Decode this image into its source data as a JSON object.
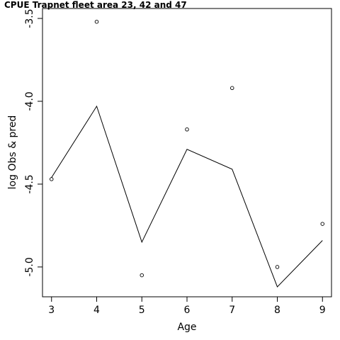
{
  "chart_data": {
    "type": "line",
    "title": "CPUE Trapnet fleet area 23, 42 and 47",
    "xlabel": "Age",
    "ylabel": "log Obs & pred",
    "x": [
      3,
      4,
      5,
      6,
      7,
      8,
      9
    ],
    "xlim": [
      2.8,
      9.2
    ],
    "ylim": [
      -5.18,
      -3.44
    ],
    "x_ticks": [
      "3",
      "4",
      "5",
      "6",
      "7",
      "8",
      "9"
    ],
    "x_tick_values": [
      3,
      4,
      5,
      6,
      7,
      8,
      9
    ],
    "y_ticks": [
      "-3.5",
      "-4.0",
      "-4.5",
      "-5.0"
    ],
    "y_tick_values": [
      -3.5,
      -4.0,
      -4.5,
      -5.0
    ],
    "grid": false,
    "legend": "none",
    "series": [
      {
        "kind": "points",
        "values": [
          -4.47,
          -3.52,
          -5.05,
          -4.17,
          -3.92,
          -5.0,
          -4.74
        ],
        "color": "#000000"
      },
      {
        "kind": "line",
        "values": [
          -4.46,
          -4.03,
          -4.85,
          -4.29,
          -4.41,
          -5.12,
          -4.84
        ],
        "color": "#000000"
      }
    ]
  }
}
